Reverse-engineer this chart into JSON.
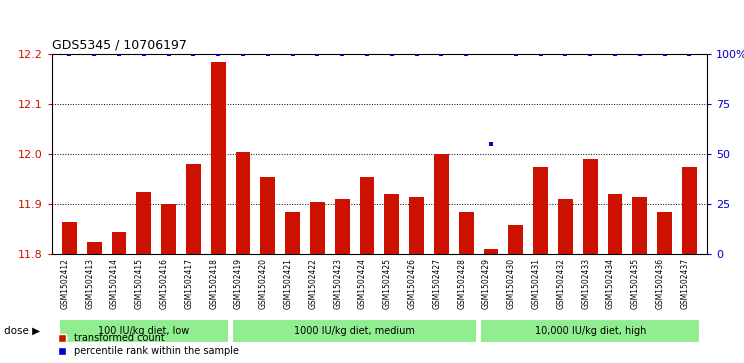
{
  "title": "GDS5345 / 10706197",
  "categories": [
    "GSM1502412",
    "GSM1502413",
    "GSM1502414",
    "GSM1502415",
    "GSM1502416",
    "GSM1502417",
    "GSM1502418",
    "GSM1502419",
    "GSM1502420",
    "GSM1502421",
    "GSM1502422",
    "GSM1502423",
    "GSM1502424",
    "GSM1502425",
    "GSM1502426",
    "GSM1502427",
    "GSM1502428",
    "GSM1502429",
    "GSM1502430",
    "GSM1502431",
    "GSM1502432",
    "GSM1502433",
    "GSM1502434",
    "GSM1502435",
    "GSM1502436",
    "GSM1502437"
  ],
  "values": [
    11.865,
    11.825,
    11.845,
    11.925,
    11.9,
    11.98,
    12.185,
    12.005,
    11.955,
    11.885,
    11.905,
    11.91,
    11.955,
    11.92,
    11.915,
    12.0,
    11.885,
    11.81,
    11.858,
    11.975,
    11.91,
    11.99,
    11.92,
    11.915,
    11.885,
    11.975
  ],
  "percentile_values": [
    100,
    100,
    100,
    100,
    100,
    100,
    100,
    100,
    100,
    100,
    100,
    100,
    100,
    100,
    100,
    100,
    100,
    55,
    100,
    100,
    100,
    100,
    100,
    100,
    100,
    100
  ],
  "bar_color": "#cc1100",
  "percentile_color": "#0000cc",
  "ylim_left": [
    11.8,
    12.2
  ],
  "ylim_right": [
    0,
    100
  ],
  "yticks_left": [
    11.8,
    11.9,
    12.0,
    12.1,
    12.2
  ],
  "yticks_right": [
    0,
    25,
    50,
    75,
    100
  ],
  "ytick_labels_right": [
    "0",
    "25",
    "50",
    "75",
    "100%"
  ],
  "groups": [
    {
      "label": "100 IU/kg diet, low",
      "start": 0,
      "end": 7
    },
    {
      "label": "1000 IU/kg diet, medium",
      "start": 7,
      "end": 17
    },
    {
      "label": "10,000 IU/kg diet, high",
      "start": 17,
      "end": 26
    }
  ],
  "group_color": "#90ee90",
  "group_border_color": "#ffffff",
  "dose_label": "dose",
  "legend_items": [
    {
      "color": "#cc1100",
      "label": "transformed count"
    },
    {
      "color": "#0000cc",
      "label": "percentile rank within the sample"
    }
  ],
  "chart_bg_color": "#ffffff",
  "fig_bg_color": "#ffffff",
  "grid_color": "#000000",
  "dotted_gridlines": [
    11.9,
    12.0,
    12.1
  ]
}
